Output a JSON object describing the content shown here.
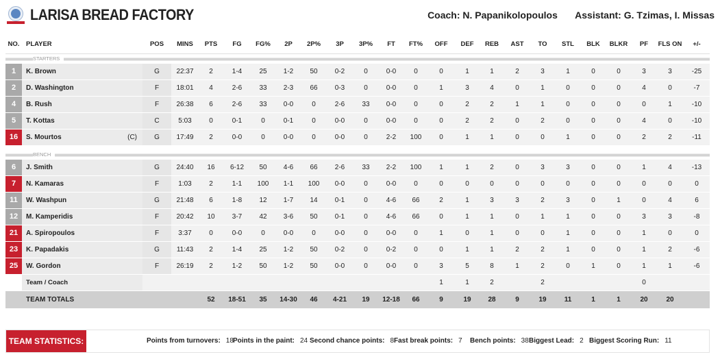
{
  "header": {
    "team_name": "LARISA BREAD FACTORY",
    "coach_label": "Coach:",
    "coach_name": "N. Papanikolopoulos",
    "assistant_label": "Assistant:",
    "assistant_name": "G. Tzimas, I. Missas",
    "logo_icon": "team-logo-icon"
  },
  "columns": [
    "NO.",
    "PLAYER",
    "POS",
    "MINS",
    "PTS",
    "FG",
    "FG%",
    "2P",
    "2P%",
    "3P",
    "3P%",
    "FT",
    "FT%",
    "OFF",
    "DEF",
    "REB",
    "AST",
    "TO",
    "STL",
    "BLK",
    "BLKR",
    "PF",
    "FLS ON",
    "+/-"
  ],
  "sections": {
    "starters_label": "STARTERS",
    "bench_label": "BENCH"
  },
  "starters": [
    {
      "no": "1",
      "red": false,
      "name": "K. Brown",
      "cap": "",
      "stats": [
        "G",
        "22:37",
        "2",
        "1-4",
        "25",
        "1-2",
        "50",
        "0-2",
        "0",
        "0-0",
        "0",
        "0",
        "1",
        "1",
        "2",
        "3",
        "1",
        "0",
        "0",
        "3",
        "3",
        "-25"
      ]
    },
    {
      "no": "2",
      "red": false,
      "name": "D. Washington",
      "cap": "",
      "stats": [
        "F",
        "18:01",
        "4",
        "2-6",
        "33",
        "2-3",
        "66",
        "0-3",
        "0",
        "0-0",
        "0",
        "1",
        "3",
        "4",
        "0",
        "1",
        "0",
        "0",
        "0",
        "4",
        "0",
        "-7"
      ]
    },
    {
      "no": "4",
      "red": false,
      "name": "B. Rush",
      "cap": "",
      "stats": [
        "F",
        "26:38",
        "6",
        "2-6",
        "33",
        "0-0",
        "0",
        "2-6",
        "33",
        "0-0",
        "0",
        "0",
        "2",
        "2",
        "1",
        "1",
        "0",
        "0",
        "0",
        "0",
        "1",
        "-10"
      ]
    },
    {
      "no": "5",
      "red": false,
      "name": "T. Kottas",
      "cap": "",
      "stats": [
        "C",
        "5:03",
        "0",
        "0-1",
        "0",
        "0-1",
        "0",
        "0-0",
        "0",
        "0-0",
        "0",
        "0",
        "2",
        "2",
        "0",
        "2",
        "0",
        "0",
        "0",
        "4",
        "0",
        "-10"
      ]
    },
    {
      "no": "16",
      "red": true,
      "name": "S. Mourtos",
      "cap": "(C)",
      "stats": [
        "G",
        "17:49",
        "2",
        "0-0",
        "0",
        "0-0",
        "0",
        "0-0",
        "0",
        "2-2",
        "100",
        "0",
        "1",
        "1",
        "0",
        "0",
        "1",
        "0",
        "0",
        "2",
        "2",
        "-11"
      ]
    }
  ],
  "bench": [
    {
      "no": "6",
      "red": false,
      "name": "J. Smith",
      "cap": "",
      "stats": [
        "G",
        "24:40",
        "16",
        "6-12",
        "50",
        "4-6",
        "66",
        "2-6",
        "33",
        "2-2",
        "100",
        "1",
        "1",
        "2",
        "0",
        "3",
        "3",
        "0",
        "0",
        "1",
        "4",
        "-13"
      ]
    },
    {
      "no": "7",
      "red": true,
      "name": "N. Kamaras",
      "cap": "",
      "stats": [
        "F",
        "1:03",
        "2",
        "1-1",
        "100",
        "1-1",
        "100",
        "0-0",
        "0",
        "0-0",
        "0",
        "0",
        "0",
        "0",
        "0",
        "0",
        "0",
        "0",
        "0",
        "0",
        "0",
        "0"
      ]
    },
    {
      "no": "11",
      "red": false,
      "name": "W. Washpun",
      "cap": "",
      "stats": [
        "G",
        "21:48",
        "6",
        "1-8",
        "12",
        "1-7",
        "14",
        "0-1",
        "0",
        "4-6",
        "66",
        "2",
        "1",
        "3",
        "3",
        "2",
        "3",
        "0",
        "1",
        "0",
        "4",
        "6"
      ]
    },
    {
      "no": "12",
      "red": false,
      "name": "M. Kamperidis",
      "cap": "",
      "stats": [
        "F",
        "20:42",
        "10",
        "3-7",
        "42",
        "3-6",
        "50",
        "0-1",
        "0",
        "4-6",
        "66",
        "0",
        "1",
        "1",
        "0",
        "1",
        "1",
        "0",
        "0",
        "3",
        "3",
        "-8"
      ]
    },
    {
      "no": "21",
      "red": true,
      "name": "A. Spiropoulos",
      "cap": "",
      "stats": [
        "F",
        "3:37",
        "0",
        "0-0",
        "0",
        "0-0",
        "0",
        "0-0",
        "0",
        "0-0",
        "0",
        "1",
        "0",
        "1",
        "0",
        "0",
        "1",
        "0",
        "0",
        "1",
        "0",
        "0"
      ]
    },
    {
      "no": "23",
      "red": true,
      "name": "K. Papadakis",
      "cap": "",
      "stats": [
        "G",
        "11:43",
        "2",
        "1-4",
        "25",
        "1-2",
        "50",
        "0-2",
        "0",
        "0-2",
        "0",
        "0",
        "1",
        "1",
        "2",
        "2",
        "1",
        "0",
        "0",
        "1",
        "2",
        "-6"
      ]
    },
    {
      "no": "25",
      "red": true,
      "name": "W. Gordon",
      "cap": "",
      "stats": [
        "F",
        "26:19",
        "2",
        "1-2",
        "50",
        "1-2",
        "50",
        "0-0",
        "0",
        "0-0",
        "0",
        "3",
        "5",
        "8",
        "1",
        "2",
        "0",
        "1",
        "0",
        "1",
        "1",
        "-6"
      ]
    }
  ],
  "team_coach": {
    "name": "Team / Coach",
    "stats": [
      "",
      "",
      "",
      "",
      "",
      "",
      "",
      "",
      "",
      "",
      "",
      "1",
      "1",
      "2",
      "",
      "2",
      "",
      "",
      "",
      "0",
      "",
      ""
    ]
  },
  "totals": {
    "name": "TEAM TOTALS",
    "stats": [
      "",
      "",
      "52",
      "18-51",
      "35",
      "14-30",
      "46",
      "4-21",
      "19",
      "12-18",
      "66",
      "9",
      "19",
      "28",
      "9",
      "19",
      "11",
      "1",
      "1",
      "20",
      "20",
      ""
    ]
  },
  "team_statistics": {
    "label": "TEAM STATISTICS:",
    "items": [
      {
        "k": "Points from turnovers:",
        "v": "18"
      },
      {
        "k": "Points in the paint:",
        "v": "24"
      },
      {
        "k": "Second chance points:",
        "v": "8"
      },
      {
        "k": "Fast break points:",
        "v": "7"
      },
      {
        "k": "Bench points:",
        "v": "38"
      },
      {
        "k": "Biggest Lead:",
        "v": "2"
      },
      {
        "k": "Biggest Scoring Run:",
        "v": "11"
      }
    ]
  }
}
